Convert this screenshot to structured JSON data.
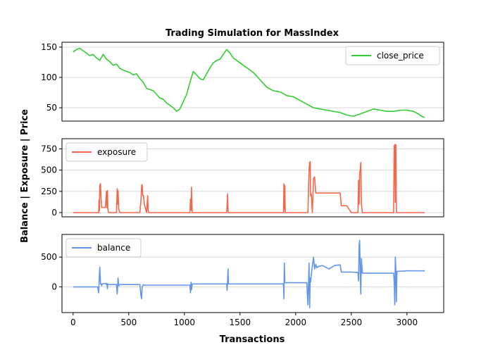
{
  "figure": {
    "title": "Trading Simulation for MassIndex",
    "ylabel": "Balance | Exposure | Price",
    "xlabel": "Transactions"
  },
  "chart_data": [
    {
      "type": "line",
      "series": [
        {
          "name": "close_price",
          "color": "#32cd32"
        }
      ],
      "x": [
        0,
        30,
        60,
        90,
        120,
        150,
        180,
        210,
        240,
        270,
        300,
        330,
        360,
        390,
        420,
        450,
        480,
        510,
        540,
        570,
        600,
        630,
        660,
        690,
        720,
        750,
        780,
        810,
        840,
        870,
        900,
        930,
        960,
        990,
        1020,
        1050,
        1080,
        1110,
        1140,
        1170,
        1200,
        1230,
        1260,
        1290,
        1320,
        1350,
        1380,
        1410,
        1440,
        1500,
        1560,
        1620,
        1680,
        1740,
        1800,
        1860,
        1920,
        1980,
        2040,
        2100,
        2160,
        2220,
        2280,
        2340,
        2400,
        2460,
        2520,
        2580,
        2640,
        2700,
        2760,
        2820,
        2880,
        2940,
        3000,
        3060,
        3100,
        3130,
        3160
      ],
      "values": [
        142,
        146,
        148,
        144,
        140,
        136,
        138,
        132,
        128,
        138,
        130,
        126,
        120,
        122,
        115,
        112,
        110,
        108,
        104,
        106,
        98,
        92,
        82,
        80,
        78,
        72,
        66,
        64,
        58,
        54,
        50,
        44,
        48,
        60,
        72,
        92,
        110,
        104,
        98,
        96,
        106,
        116,
        124,
        128,
        130,
        138,
        146,
        140,
        132,
        124,
        116,
        108,
        96,
        84,
        78,
        76,
        70,
        68,
        62,
        56,
        50,
        48,
        46,
        44,
        42,
        38,
        36,
        40,
        44,
        48,
        46,
        44,
        44,
        46,
        46,
        44,
        40,
        36,
        34
      ],
      "xlim": [
        -100,
        3330
      ],
      "ylim": [
        28,
        158
      ],
      "yticks": [
        50,
        100,
        150
      ],
      "legend_position": "top-right",
      "grid": "horizontal"
    },
    {
      "type": "line",
      "series": [
        {
          "name": "exposure",
          "color": "#f4674b"
        }
      ],
      "x": [
        0,
        230,
        232,
        236,
        240,
        246,
        250,
        256,
        262,
        290,
        300,
        304,
        308,
        312,
        318,
        390,
        396,
        400,
        404,
        410,
        420,
        440,
        460,
        600,
        610,
        616,
        620,
        626,
        632,
        640,
        660,
        670,
        674,
        680,
        700,
        1050,
        1054,
        1060,
        1064,
        1070,
        1380,
        1384,
        1388,
        1392,
        1396,
        1890,
        1894,
        1898,
        1902,
        1906,
        2100,
        2110,
        2120,
        2126,
        2130,
        2134,
        2140,
        2150,
        2160,
        2170,
        2180,
        2185,
        2190,
        2200,
        2240,
        2300,
        2400,
        2410,
        2420,
        2460,
        2500,
        2560,
        2565,
        2570,
        2575,
        2580,
        2585,
        2590,
        2600,
        2640,
        2880,
        2885,
        2890,
        2895,
        2900,
        2905,
        2910,
        3000,
        3160
      ],
      "values": [
        0,
        0,
        150,
        20,
        320,
        340,
        200,
        60,
        60,
        60,
        250,
        60,
        260,
        50,
        0,
        0,
        280,
        100,
        260,
        40,
        0,
        0,
        0,
        0,
        150,
        320,
        330,
        200,
        200,
        100,
        0,
        200,
        30,
        0,
        0,
        0,
        160,
        30,
        300,
        0,
        0,
        100,
        220,
        20,
        0,
        0,
        340,
        40,
        320,
        0,
        0,
        0,
        500,
        590,
        600,
        200,
        220,
        0,
        400,
        420,
        230,
        230,
        230,
        230,
        230,
        230,
        230,
        80,
        80,
        80,
        0,
        0,
        380,
        100,
        470,
        500,
        590,
        100,
        0,
        0,
        0,
        780,
        800,
        120,
        800,
        0,
        0,
        0,
        0
      ],
      "xlim": [
        -100,
        3330
      ],
      "ylim": [
        -50,
        870
      ],
      "yticks": [
        0,
        250,
        500,
        750
      ],
      "legend_position": "top-left",
      "grid": "horizontal"
    },
    {
      "type": "line",
      "series": [
        {
          "name": "balance",
          "color": "#6495ed"
        }
      ],
      "x": [
        0,
        200,
        220,
        230,
        235,
        240,
        246,
        250,
        256,
        262,
        290,
        300,
        304,
        308,
        312,
        318,
        390,
        396,
        400,
        404,
        410,
        420,
        440,
        460,
        600,
        610,
        616,
        620,
        626,
        632,
        640,
        660,
        700,
        1050,
        1054,
        1060,
        1064,
        1070,
        1100,
        1380,
        1384,
        1388,
        1392,
        1396,
        1400,
        1890,
        1894,
        1898,
        1902,
        1906,
        1910,
        2100,
        2110,
        2120,
        2126,
        2130,
        2134,
        2140,
        2150,
        2160,
        2170,
        2180,
        2190,
        2200,
        2240,
        2300,
        2350,
        2400,
        2410,
        2420,
        2460,
        2500,
        2560,
        2565,
        2570,
        2575,
        2580,
        2585,
        2590,
        2600,
        2880,
        2885,
        2890,
        2895,
        2900,
        2905,
        2910,
        3000,
        3160
      ],
      "values": [
        0,
        0,
        0,
        -100,
        150,
        330,
        50,
        60,
        20,
        50,
        60,
        40,
        60,
        -30,
        50,
        40,
        40,
        -120,
        0,
        150,
        20,
        40,
        40,
        40,
        40,
        -150,
        -200,
        0,
        20,
        40,
        30,
        30,
        30,
        30,
        -100,
        80,
        -50,
        50,
        50,
        50,
        -60,
        100,
        300,
        50,
        50,
        50,
        -200,
        400,
        80,
        70,
        70,
        70,
        -300,
        400,
        -350,
        150,
        80,
        200,
        350,
        500,
        300,
        380,
        320,
        340,
        360,
        300,
        360,
        370,
        250,
        250,
        250,
        250,
        240,
        100,
        700,
        780,
        200,
        -120,
        480,
        230,
        230,
        100,
        -300,
        500,
        280,
        -250,
        260,
        270,
        270
      ],
      "xlim": [
        -100,
        3330
      ],
      "ylim": [
        -430,
        880
      ],
      "yticks": [
        0,
        500
      ],
      "xticks": [
        0,
        500,
        1000,
        1500,
        2000,
        2500,
        3000
      ],
      "legend_position": "top-left",
      "grid": "horizontal"
    }
  ]
}
